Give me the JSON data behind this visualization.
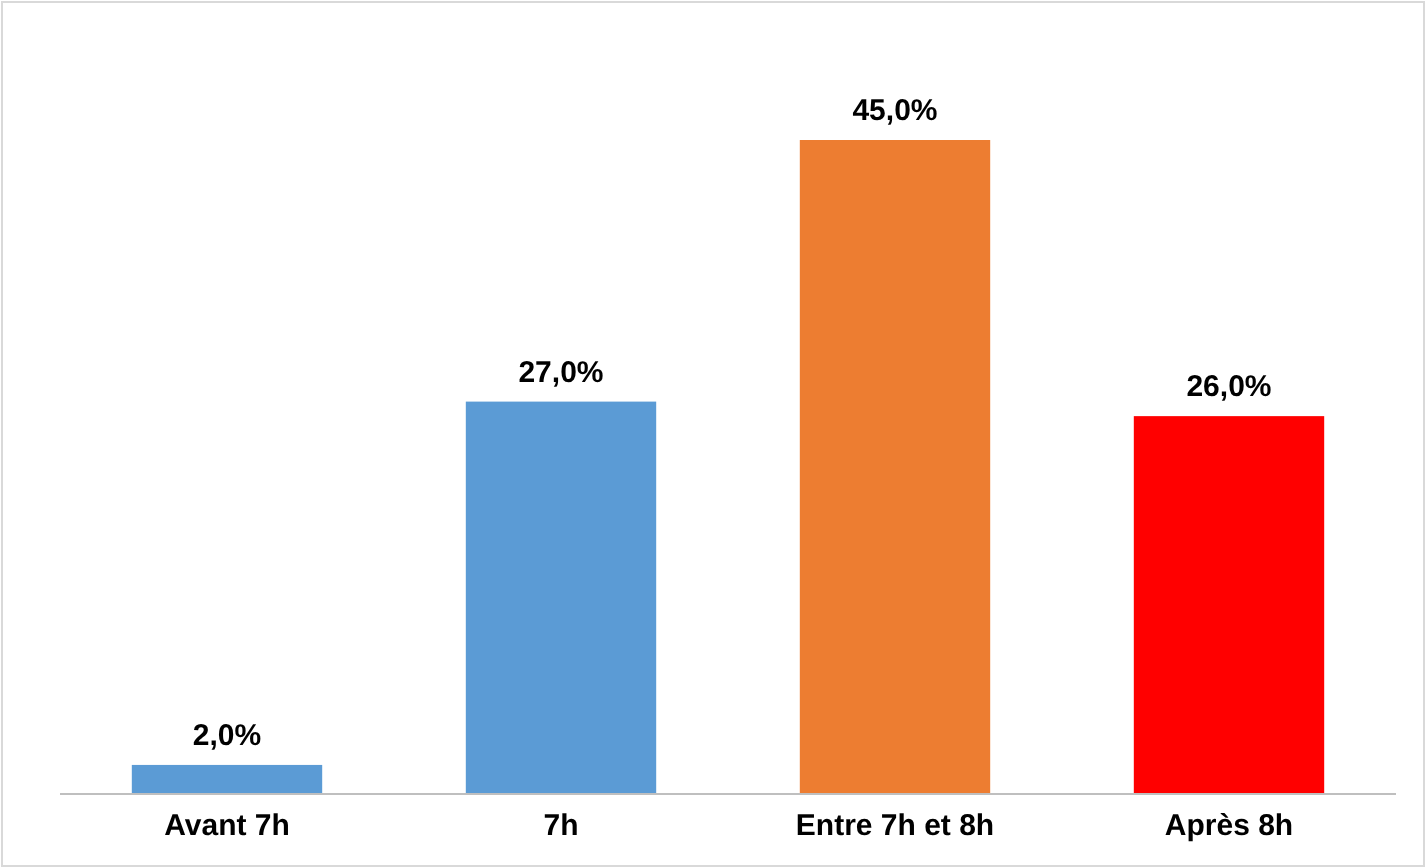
{
  "chart_data": {
    "type": "bar",
    "categories": [
      "Avant 7h",
      "7h",
      "Entre 7h et 8h",
      "Après 8h"
    ],
    "values": [
      2,
      27,
      45,
      26
    ],
    "colors": [
      "#5b9bd5",
      "#5b9bd5",
      "#ed7d31",
      "#ff0000"
    ],
    "value_labels": [
      "2,0%",
      "27,0%",
      "45,0%",
      "26,0%"
    ]
  }
}
